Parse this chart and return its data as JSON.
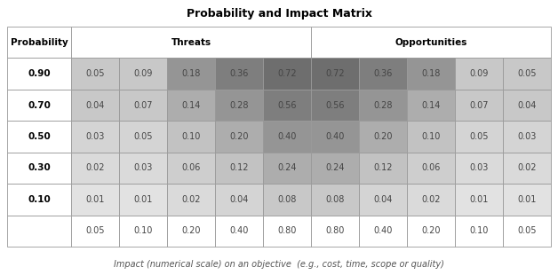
{
  "title": "Probability and Impact Matrix",
  "footnote": "Impact (numerical scale) on an objective  (e.g., cost, time, scope or quality)",
  "prob_labels": [
    "0.90",
    "0.70",
    "0.50",
    "0.30",
    "0.10",
    ""
  ],
  "threats_header": "Threats",
  "opps_header": "Opportunities",
  "prob_header": "Probability",
  "table_data": [
    [
      "0.05",
      "0.09",
      "0.18",
      "0.36",
      "0.72",
      "0.72",
      "0.36",
      "0.18",
      "0.09",
      "0.05"
    ],
    [
      "0.04",
      "0.07",
      "0.14",
      "0.28",
      "0.56",
      "0.56",
      "0.28",
      "0.14",
      "0.07",
      "0.04"
    ],
    [
      "0.03",
      "0.05",
      "0.10",
      "0.20",
      "0.40",
      "0.40",
      "0.20",
      "0.10",
      "0.05",
      "0.03"
    ],
    [
      "0.02",
      "0.03",
      "0.06",
      "0.12",
      "0.24",
      "0.24",
      "0.12",
      "0.06",
      "0.03",
      "0.02"
    ],
    [
      "0.01",
      "0.01",
      "0.02",
      "0.04",
      "0.08",
      "0.08",
      "0.04",
      "0.02",
      "0.01",
      "0.01"
    ],
    [
      "0.05",
      "0.10",
      "0.20",
      "0.40",
      "0.80",
      "0.80",
      "0.40",
      "0.20",
      "0.10",
      "0.05"
    ]
  ],
  "cell_colors_grid": [
    [
      "#c8c8c8",
      "#c8c8c8",
      "#959595",
      "#7e7e7e",
      "#6e6e6e",
      "#6e6e6e",
      "#7e7e7e",
      "#959595",
      "#c8c8c8",
      "#c8c8c8"
    ],
    [
      "#c8c8c8",
      "#c8c8c8",
      "#adadad",
      "#959595",
      "#7e7e7e",
      "#7e7e7e",
      "#959595",
      "#adadad",
      "#c8c8c8",
      "#c8c8c8"
    ],
    [
      "#d4d4d4",
      "#d4d4d4",
      "#c2c2c2",
      "#adadad",
      "#959595",
      "#959595",
      "#adadad",
      "#c2c2c2",
      "#d4d4d4",
      "#d4d4d4"
    ],
    [
      "#dadada",
      "#dadada",
      "#cecece",
      "#c2c2c2",
      "#adadad",
      "#adadad",
      "#c2c2c2",
      "#cecece",
      "#dadada",
      "#dadada"
    ],
    [
      "#e2e2e2",
      "#e2e2e2",
      "#dadada",
      "#d4d4d4",
      "#c8c8c8",
      "#c8c8c8",
      "#d4d4d4",
      "#dadada",
      "#e2e2e2",
      "#e2e2e2"
    ]
  ],
  "bg_color": "#ffffff",
  "edge_color": "#999999",
  "title_fontsize": 9,
  "header_fontsize": 7.5,
  "cell_fontsize": 7,
  "footnote_fontsize": 7
}
